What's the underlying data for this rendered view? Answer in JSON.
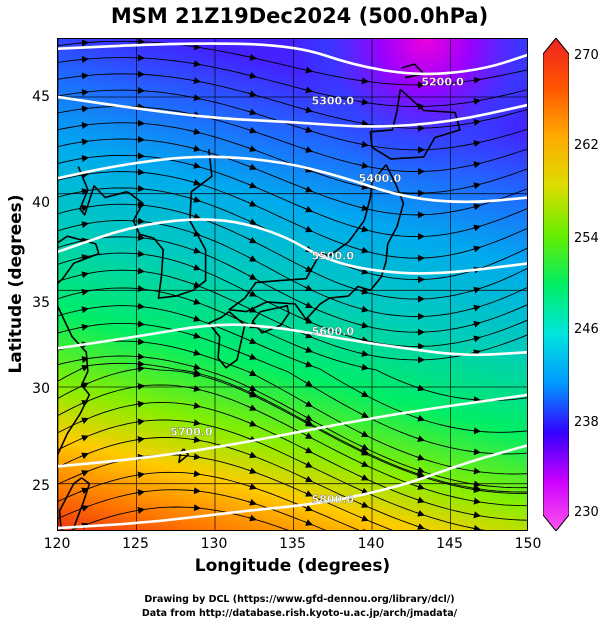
{
  "title": "MSM 21Z19Dec2024 (500.0hPa)",
  "x_axis": {
    "label": "Longitude (degrees)",
    "range": [
      120,
      150
    ],
    "ticks": [
      "120",
      "125",
      "130",
      "135",
      "140",
      "145",
      "150"
    ]
  },
  "y_axis": {
    "label": "Latitude  (degrees)",
    "range": [
      22.5,
      48
    ],
    "ticks": [
      "25",
      "30",
      "35",
      "40",
      "45"
    ]
  },
  "colorbar": {
    "range": [
      230,
      270
    ],
    "ticks": [
      "230",
      "238",
      "246",
      "254",
      "262",
      "270"
    ],
    "colors": [
      "#ff55ee",
      "#cc00ff",
      "#3300ff",
      "#0099ff",
      "#00e5dd",
      "#00ee66",
      "#66ee00",
      "#dddd00",
      "#ffaa00",
      "#ff5500",
      "#ee2222"
    ]
  },
  "contours": {
    "values": [
      {
        "label": "5200.0",
        "lon": 144.5
      },
      {
        "label": "5300.0",
        "lon": 137.5
      },
      {
        "label": "5400.0",
        "lon": 140.5
      },
      {
        "label": "5500.0",
        "lon": 137.5
      },
      {
        "label": "5600.0",
        "lon": 137.5
      },
      {
        "label": "5700.0",
        "lon": 128.5
      },
      {
        "label": "5800.0",
        "lon": 137.5
      }
    ],
    "color": "#ffffff"
  },
  "credits": {
    "line1": "Drawing by DCL (https://www.gfd-dennou.org/library/dcl/)",
    "line2": "Data from http://database.rish.kyoto-u.ac.jp/arch/jmadata/"
  }
}
